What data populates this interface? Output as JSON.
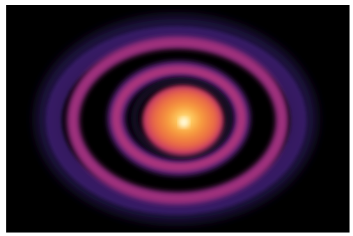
{
  "image": {
    "subject": "protoplanetary-disk",
    "palette": {
      "background": "#000000",
      "frame": "#ffffff",
      "outer_halo": "#2a1458",
      "outer_ring": "#8a2a7a",
      "outer_ring_bright": "#b0347e",
      "inner_ring": "#a0307e",
      "inner_ring_bright": "#c03b7a",
      "gap": "#12081e",
      "core_edge": "#e0504a",
      "core_mid": "#f08a3a",
      "core_center": "#fff1a8"
    }
  }
}
